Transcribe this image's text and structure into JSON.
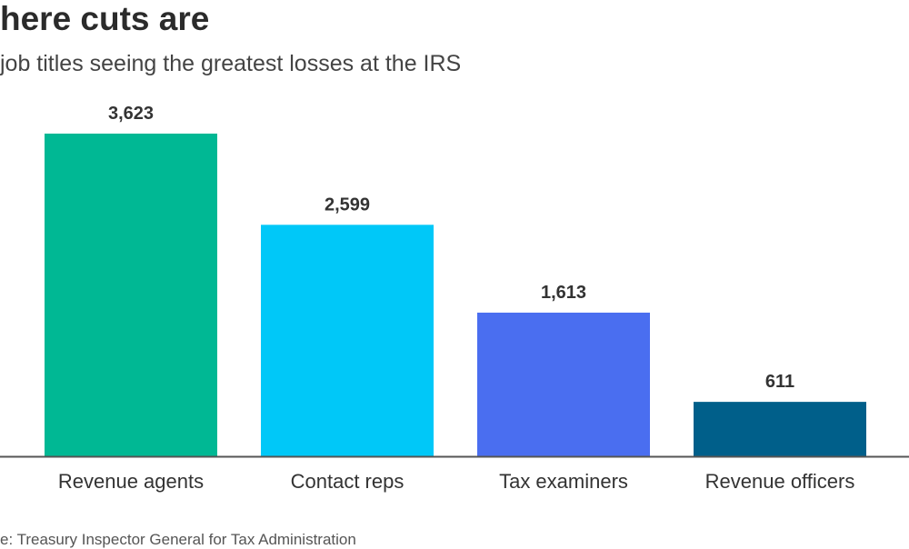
{
  "header": {
    "title": "here cuts are",
    "subtitle": "job titles seeing the greatest losses at the IRS"
  },
  "footer": {
    "source": "e: Treasury Inspector General for Tax Administration"
  },
  "chart_data": {
    "type": "bar",
    "categories": [
      "Revenue agents",
      "Contact reps",
      "Tax examiners",
      "Revenue officers"
    ],
    "values": [
      3623,
      2599,
      1613,
      611
    ],
    "value_labels": [
      "3,623",
      "2,599",
      "1,613",
      "611"
    ],
    "colors": [
      "#00b894",
      "#00c8f8",
      "#4a6ef0",
      "#005f8a"
    ],
    "title": "here cuts are",
    "subtitle": "job titles seeing the greatest losses at the IRS",
    "xlabel": "",
    "ylabel": "",
    "ylim": [
      0,
      3623
    ],
    "grid": false,
    "legend": "none"
  }
}
